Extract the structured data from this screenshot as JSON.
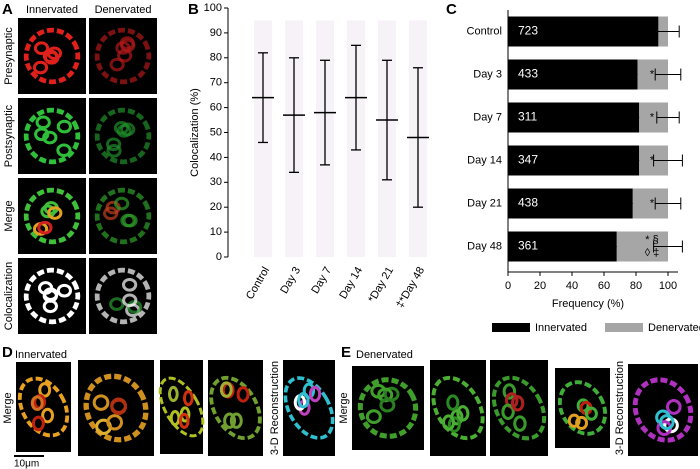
{
  "panel_a": {
    "letter": "A",
    "columns": [
      "Innervated",
      "Denervated"
    ],
    "rows": [
      "Presynaptic",
      "Postsynaptic",
      "Merge",
      "Colocalization"
    ]
  },
  "chart_data": [
    {
      "type": "dot",
      "panel": "B",
      "categories": [
        "Control",
        "Day 3",
        "Day 7",
        "Day 14",
        "*Day 21",
        "‡*Day 48"
      ],
      "values": [
        64,
        57,
        58,
        64,
        55,
        48
      ],
      "errors": [
        18,
        23,
        21,
        21,
        24,
        28
      ],
      "color": "#000000",
      "ylabel": "Colocalization (%)",
      "ylim": [
        0,
        100
      ],
      "yticks": [
        0,
        10,
        20,
        30,
        40,
        50,
        60,
        70,
        80,
        90,
        100
      ]
    },
    {
      "type": "stacked_barh",
      "panel": "C",
      "categories": [
        "Control",
        "Day 3",
        "Day 7",
        "Day 14",
        "Day 21",
        "Day 48"
      ],
      "counts": [
        723,
        433,
        311,
        347,
        438,
        361
      ],
      "series": [
        {
          "name": "Innervated",
          "color": "#000000",
          "values": [
            94,
            81,
            82,
            82,
            78,
            68
          ],
          "errors": [
            4,
            10,
            3,
            10,
            4,
            9
          ]
        },
        {
          "name": "Denervated",
          "color": "#a6a6a6",
          "values": [
            6,
            19,
            18,
            18,
            22,
            32
          ],
          "errors": [
            7,
            8,
            7,
            9,
            8,
            9
          ]
        }
      ],
      "annotations": [
        null,
        [
          "*"
        ],
        [
          "*"
        ],
        [
          "*"
        ],
        [
          "*"
        ],
        [
          "* §",
          "◊ ‡"
        ]
      ],
      "xlabel": "Frequency (%)",
      "xlim": [
        0,
        100
      ],
      "xticks": [
        0,
        20,
        40,
        60,
        80,
        100
      ],
      "legend": "bottom"
    }
  ],
  "panel_d": {
    "letter": "D",
    "title": "Innervated",
    "row_label": "Merge",
    "reconstruction_label": "3-D Reconstruction",
    "scale_bar": "10μm"
  },
  "panel_e": {
    "letter": "E",
    "title": "Denervated",
    "row_label": "Merge",
    "reconstruction_label": "3-D Reconstruction"
  }
}
